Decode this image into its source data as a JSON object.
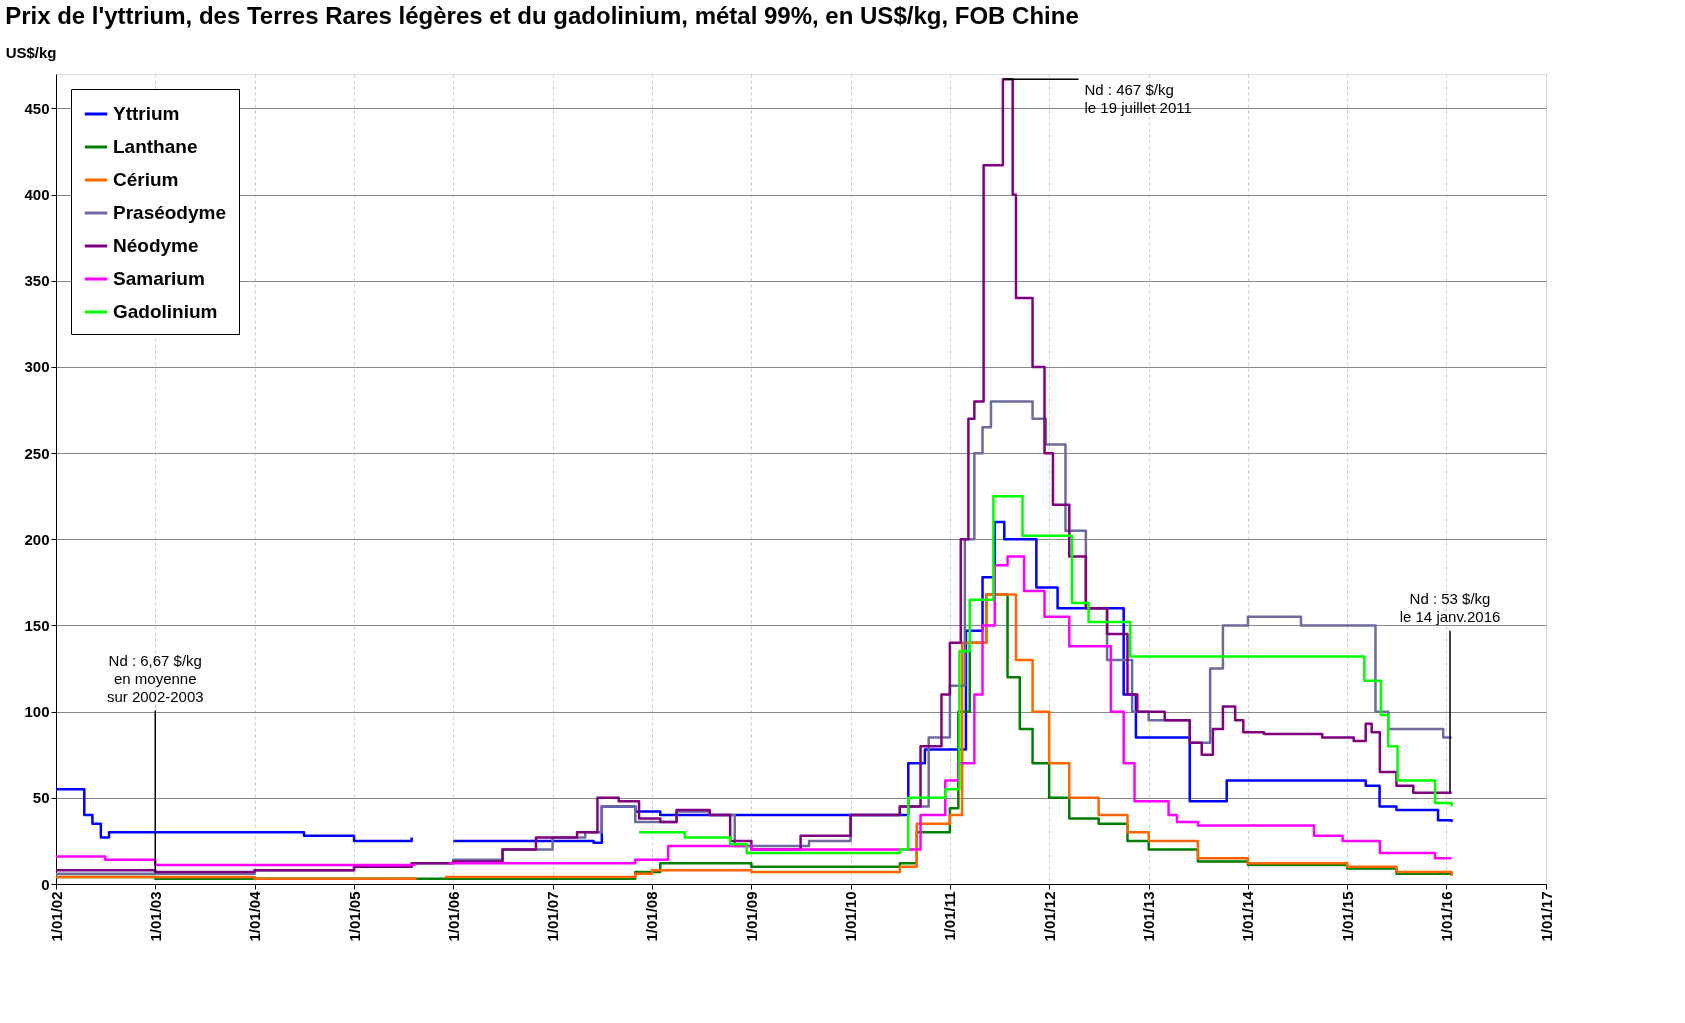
{
  "chart_data": {
    "type": "step",
    "title": "Prix de l'yttrium, des Terres Rares légères et du gadolinium, métal 99%, en US$/kg, FOB Chine",
    "ylabel": "US$/kg",
    "xlim": [
      "2002-01-01",
      "2017-01-01"
    ],
    "xticks": [
      {
        "value": "2002-01-01",
        "label": "1/01/02"
      },
      {
        "value": "2003-01-01",
        "label": "1/01/03"
      },
      {
        "value": "2004-01-01",
        "label": "1/01/04"
      },
      {
        "value": "2005-01-01",
        "label": "1/01/05"
      },
      {
        "value": "2006-01-01",
        "label": "1/01/06"
      },
      {
        "value": "2007-01-01",
        "label": "1/01/07"
      },
      {
        "value": "2008-01-01",
        "label": "1/01/08"
      },
      {
        "value": "2009-01-01",
        "label": "1/01/09"
      },
      {
        "value": "2010-01-01",
        "label": "1/01/10"
      },
      {
        "value": "2011-01-01",
        "label": "1/01/11"
      },
      {
        "value": "2012-01-01",
        "label": "1/01/12"
      },
      {
        "value": "2013-01-01",
        "label": "1/01/13"
      },
      {
        "value": "2014-01-01",
        "label": "1/01/14"
      },
      {
        "value": "2015-01-01",
        "label": "1/01/15"
      },
      {
        "value": "2016-01-01",
        "label": "1/01/16"
      },
      {
        "value": "2017-01-01",
        "label": "1/01/17"
      }
    ],
    "ylim": [
      0,
      470
    ],
    "yticks": [
      0,
      50,
      100,
      150,
      200,
      250,
      300,
      350,
      400,
      450
    ],
    "grid": true,
    "legend": "top left",
    "series": [
      {
        "name": "Yttrium",
        "color": "#0000ff",
        "x": [
          "2002-01-01",
          "2002-03-15",
          "2002-04-15",
          "2002-05-15",
          "2002-06-15",
          "2002-07-15",
          "2004-07-01",
          "2005-01-01",
          "2005-08-01",
          "2005-09-01",
          "2006-01-01",
          "2007-06-01",
          "2007-07-01",
          "2007-11-01",
          "2008-02-01",
          "2010-07-01",
          "2010-08-01",
          "2010-10-01",
          "2011-03-01",
          "2011-05-01",
          "2011-06-15",
          "2011-07-20",
          "2011-11-15",
          "2012-02-01",
          "2012-10-01",
          "2012-11-15",
          "2013-06-01",
          "2013-10-15",
          "2015-03-10",
          "2015-04-30",
          "2015-07-01",
          "2015-12-01",
          "2016-01-20"
        ],
        "values": [
          55,
          55,
          40,
          35,
          27,
          30,
          28,
          25,
          27,
          null,
          25,
          24,
          45,
          42,
          40,
          40,
          70,
          78,
          147,
          178,
          210,
          200,
          172,
          160,
          110,
          85,
          48,
          60,
          57,
          45,
          43,
          37,
          36
        ]
      },
      {
        "name": "Lanthane",
        "color": "#008000",
        "x": [
          "2002-01-01",
          "2003-01-01",
          "2007-11-01",
          "2008-02-01",
          "2008-07-01",
          "2009-01-01",
          "2010-07-01",
          "2010-09-01",
          "2011-01-01",
          "2011-02-01",
          "2011-03-15",
          "2011-05-15",
          "2011-08-01",
          "2011-09-15",
          "2011-11-01",
          "2012-01-01",
          "2012-03-15",
          "2012-07-01",
          "2012-10-15",
          "2013-01-01",
          "2013-07-01",
          "2014-01-01",
          "2015-01-01",
          "2015-07-01",
          "2016-01-20"
        ],
        "values": [
          4,
          3,
          7,
          12,
          12,
          10,
          12,
          30,
          44,
          100,
          140,
          168,
          120,
          90,
          70,
          50,
          38,
          35,
          25,
          20,
          13,
          11,
          9,
          6,
          5
        ]
      },
      {
        "name": "Cérium",
        "color": "#ff6600",
        "x": [
          "2002-01-01",
          "2003-01-01",
          "2004-01-01",
          "2005-08-15",
          "2005-09-01",
          "2005-12-01",
          "2007-11-01",
          "2008-01-01",
          "2009-01-01",
          "2010-07-01",
          "2010-09-01",
          "2011-01-01",
          "2011-02-15",
          "2011-05-15",
          "2011-09-01",
          "2011-11-01",
          "2012-01-01",
          "2012-03-15",
          "2012-07-01",
          "2012-10-15",
          "2013-01-01",
          "2013-07-01",
          "2014-01-01",
          "2015-01-01",
          "2015-07-01",
          "2016-01-20"
        ],
        "values": [
          4,
          4,
          3,
          4,
          null,
          4,
          6,
          8,
          7,
          10,
          35,
          40,
          140,
          168,
          130,
          100,
          70,
          50,
          40,
          30,
          25,
          15,
          12,
          10,
          7,
          5
        ]
      },
      {
        "name": "Praséodyme",
        "color": "#6b6b9e",
        "x": [
          "2002-01-01",
          "2003-01-01",
          "2004-01-01",
          "2005-01-01",
          "2005-08-01",
          "2006-01-01",
          "2006-07-01",
          "2007-01-01",
          "2007-05-01",
          "2007-07-01",
          "2007-11-01",
          "2008-04-01",
          "2008-08-01",
          "2008-11-01",
          "2009-08-01",
          "2010-01-01",
          "2010-07-01",
          "2010-10-15",
          "2011-01-01",
          "2011-02-25",
          "2011-04-01",
          "2011-05-01",
          "2011-06-01",
          "2011-11-01",
          "2011-12-20",
          "2012-03-01",
          "2012-05-15",
          "2012-08-01",
          "2012-11-01",
          "2013-01-01",
          "2013-06-01",
          "2013-08-15",
          "2013-10-01",
          "2014-01-01",
          "2014-07-15",
          "2015-04-15",
          "2015-06-01",
          "2015-12-20",
          "2016-01-20"
        ],
        "values": [
          6,
          6,
          8,
          10,
          12,
          14,
          20,
          27,
          30,
          45,
          36,
          42,
          40,
          22,
          25,
          40,
          45,
          85,
          115,
          200,
          250,
          265,
          280,
          270,
          255,
          205,
          160,
          130,
          100,
          95,
          82,
          125,
          150,
          155,
          150,
          100,
          90,
          85,
          85
        ]
      },
      {
        "name": "Néodyme",
        "color": "#800080",
        "x": [
          "2002-01-01",
          "2003-01-01",
          "2004-01-01",
          "2005-01-01",
          "2005-08-01",
          "2006-01-01",
          "2006-07-01",
          "2006-11-01",
          "2007-04-01",
          "2007-06-15",
          "2007-09-01",
          "2007-11-15",
          "2008-02-01",
          "2008-04-01",
          "2008-08-01",
          "2008-10-15",
          "2009-01-01",
          "2009-07-01",
          "2010-01-01",
          "2010-07-01",
          "2010-09-15",
          "2010-12-01",
          "2011-01-01",
          "2011-02-10",
          "2011-03-10",
          "2011-04-01",
          "2011-05-05",
          "2011-07-15",
          "2011-08-20",
          "2011-09-01",
          "2011-11-01",
          "2011-12-15",
          "2012-01-15",
          "2012-03-15",
          "2012-05-15",
          "2012-08-01",
          "2012-10-15",
          "2012-11-20",
          "2013-03-01",
          "2013-06-01",
          "2013-07-15",
          "2013-08-25",
          "2013-10-01",
          "2013-11-15",
          "2013-12-15",
          "2014-03-01",
          "2014-10-01",
          "2015-01-25",
          "2015-03-10",
          "2015-04-01",
          "2015-05-01",
          "2015-07-01",
          "2015-09-01",
          "2016-01-20"
        ],
        "values": [
          8,
          7,
          8,
          10,
          12,
          13,
          20,
          27,
          30,
          50,
          48,
          38,
          36,
          43,
          40,
          25,
          20,
          28,
          40,
          45,
          80,
          110,
          140,
          200,
          270,
          280,
          417,
          467,
          400,
          340,
          300,
          250,
          220,
          190,
          160,
          145,
          110,
          100,
          95,
          82,
          75,
          90,
          103,
          95,
          88,
          87,
          85,
          83,
          93,
          88,
          65,
          57,
          53,
          53
        ]
      },
      {
        "name": "Samarium",
        "color": "#ff00ff",
        "x": [
          "2002-01-01",
          "2002-07-01",
          "2003-01-01",
          "2005-08-15",
          "2005-09-01",
          "2005-12-15",
          "2007-07-01",
          "2007-11-01",
          "2008-03-01",
          "2009-01-01",
          "2010-07-01",
          "2010-09-15",
          "2010-12-15",
          "2011-02-01",
          "2011-04-01",
          "2011-05-01",
          "2011-06-15",
          "2011-08-01",
          "2011-10-01",
          "2011-12-15",
          "2012-03-15",
          "2012-08-15",
          "2012-10-01",
          "2012-11-10",
          "2013-03-15",
          "2013-04-15",
          "2013-07-01",
          "2014-09-01",
          "2014-12-15",
          "2015-05-01",
          "2015-11-20",
          "2016-01-20"
        ],
        "values": [
          16,
          14,
          11,
          11,
          null,
          12,
          12,
          14,
          22,
          20,
          20,
          40,
          60,
          70,
          110,
          150,
          185,
          190,
          170,
          155,
          138,
          100,
          70,
          48,
          40,
          36,
          34,
          28,
          25,
          18,
          15,
          15
        ]
      },
      {
        "name": "Gadolinium",
        "color": "#00ff00",
        "x": [
          "2007-11-15",
          "2008-05-01",
          "2008-10-15",
          "2008-12-15",
          "2010-07-01",
          "2010-08-01",
          "2010-12-15",
          "2011-02-05",
          "2011-03-15",
          "2011-06-10",
          "2011-09-25",
          "2012-03-25",
          "2012-05-25",
          "2012-10-25",
          "2015-03-05",
          "2015-05-05",
          "2015-06-01",
          "2015-07-05",
          "2015-11-20",
          "2016-01-20"
        ],
        "values": [
          30,
          27,
          23,
          18,
          20,
          50,
          55,
          135,
          165,
          225,
          202,
          163,
          152,
          132,
          118,
          98,
          80,
          60,
          47,
          45
        ]
      }
    ],
    "annotations": [
      {
        "text": "Nd : 467 $/kg\nle 19 juillet 2011",
        "x": "2011-07-19",
        "y": 467
      },
      {
        "text": "Nd : 53 $/kg\nle 14 janv.2016",
        "x": "2016-01-14",
        "y": 53
      },
      {
        "text": "Nd : 6,67 $/kg\nen moyenne\nsur 2002-2003",
        "x": "2003-01-01",
        "y": 6.67
      }
    ]
  }
}
